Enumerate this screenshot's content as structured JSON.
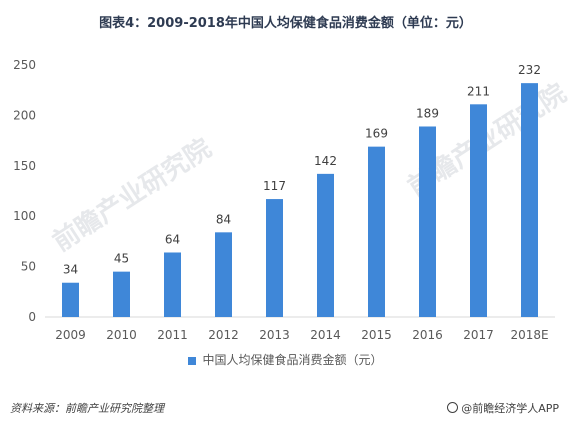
{
  "title": "图表4：2009-2018年中国人均保健食品消费金额（单位：元）",
  "chart_data": {
    "type": "bar",
    "title": "图表4：2009-2018年中国人均保健食品消费金额（单位：元）",
    "categories": [
      "2009",
      "2010",
      "2011",
      "2012",
      "2013",
      "2014",
      "2015",
      "2016",
      "2017",
      "2018E"
    ],
    "series": [
      {
        "name": "中国人均保健食品消费金额（元）",
        "values": [
          34,
          45,
          64,
          84,
          117,
          142,
          169,
          189,
          211,
          232
        ]
      }
    ],
    "ylim": [
      0,
      250
    ],
    "yticks": [
      0,
      50,
      100,
      150,
      200,
      250
    ],
    "grid": false,
    "legend": "bottom",
    "data_labels": true,
    "color": "#3f87d8"
  },
  "legend_label": "中国人均保健食品消费金额（元）",
  "footer": {
    "source": "资料来源：前瞻产业研究院整理",
    "brand": "@前瞻经济学人APP"
  },
  "watermark": "前瞻产业研究院"
}
